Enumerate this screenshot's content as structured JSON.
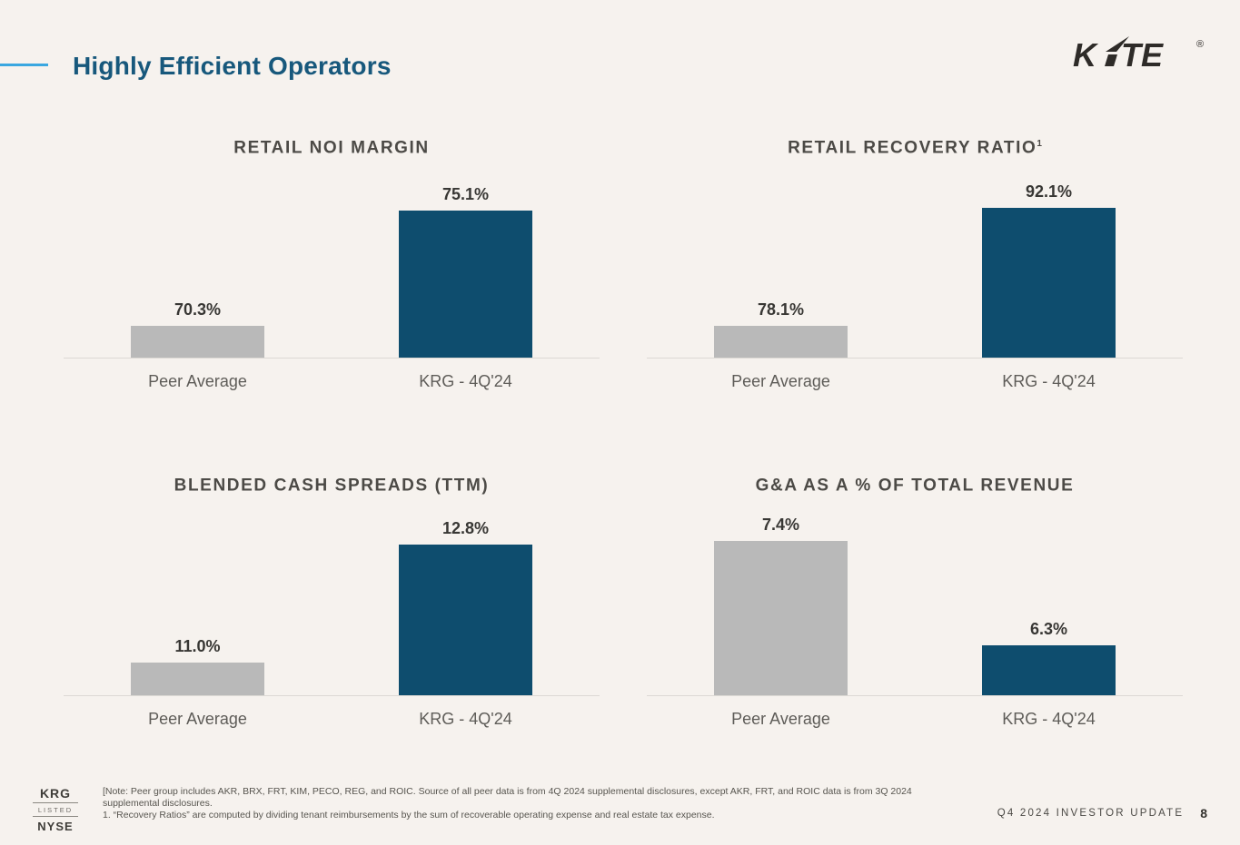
{
  "header": {
    "title": "Highly Efficient Operators",
    "logo": {
      "k": "K",
      "te": "TE",
      "reg": "®"
    }
  },
  "colors": {
    "background": "#f6f2ee",
    "accent_blue": "#3aa7e0",
    "title_blue": "#17587c",
    "bar_navy": "#0e4d6e",
    "bar_gray": "#b9b9b9",
    "axis_line": "#dcd9d4"
  },
  "chart_data": [
    {
      "type": "bar",
      "title": "RETAIL NOI MARGIN",
      "sup": "",
      "categories": [
        "Peer Average",
        "KRG - 4Q'24"
      ],
      "values": [
        70.3,
        75.1
      ],
      "labels": [
        "70.3%",
        "75.1%"
      ],
      "ylim": [
        69.0,
        75.4
      ],
      "bar_colors": [
        "#b9b9b9",
        "#0e4d6e"
      ],
      "grid": false,
      "legend": "none"
    },
    {
      "type": "bar",
      "title": "RETAIL RECOVERY RATIO",
      "sup": "1",
      "categories": [
        "Peer Average",
        "KRG - 4Q'24"
      ],
      "values": [
        78.1,
        92.1
      ],
      "labels": [
        "78.1%",
        "92.1%"
      ],
      "ylim": [
        74.4,
        92.6
      ],
      "bar_colors": [
        "#b9b9b9",
        "#0e4d6e"
      ],
      "grid": false,
      "legend": "none"
    },
    {
      "type": "bar",
      "title": "BLENDED CASH SPREADS (TTM)",
      "sup": "",
      "categories": [
        "Peer Average",
        "KRG - 4Q'24"
      ],
      "values": [
        11.0,
        12.8
      ],
      "labels": [
        "11.0%",
        "12.8%"
      ],
      "ylim": [
        10.5,
        12.85
      ],
      "bar_colors": [
        "#b9b9b9",
        "#0e4d6e"
      ],
      "grid": false,
      "legend": "none"
    },
    {
      "type": "bar",
      "title": "G&A AS A % OF TOTAL REVENUE",
      "sup": "",
      "categories": [
        "Peer Average",
        "KRG - 4Q'24"
      ],
      "values": [
        7.4,
        6.3
      ],
      "labels": [
        "7.4%",
        "6.3%"
      ],
      "ylim": [
        5.78,
        7.4
      ],
      "bar_colors": [
        "#b9b9b9",
        "#0e4d6e"
      ],
      "grid": false,
      "legend": "none"
    }
  ],
  "footer": {
    "listing": {
      "ticker": "KRG",
      "listed": "LISTED",
      "exchange": "NYSE"
    },
    "note": "[Note: Peer group includes AKR, BRX, FRT, KIM, PECO, REG, and ROIC. Source of all peer data is from 4Q 2024 supplemental disclosures, except AKR, FRT, and ROIC data is from 3Q 2024 supplemental disclosures.",
    "footnote": "1.   “Recovery Ratios” are computed by dividing tenant reimbursements by the sum of recoverable operating expense and real estate tax expense.",
    "right_label": "Q4 2024 INVESTOR UPDATE",
    "page_number": "8"
  }
}
